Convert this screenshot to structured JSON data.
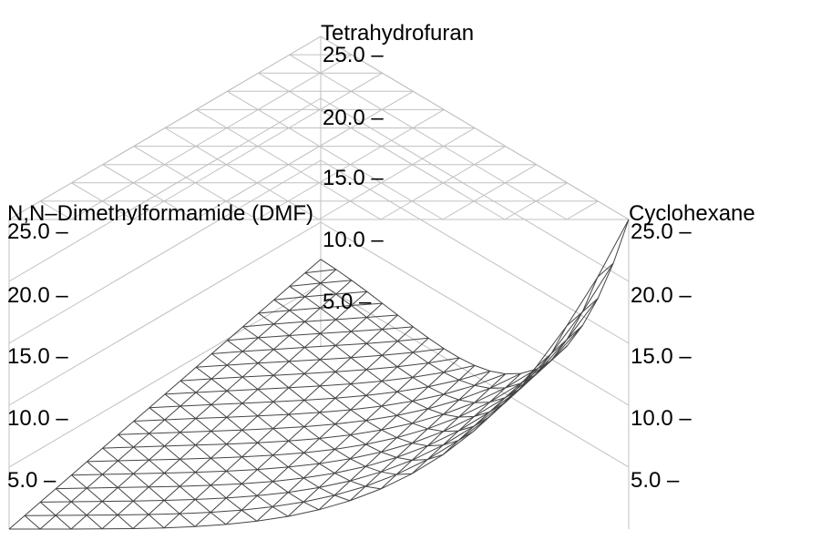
{
  "chart_data": {
    "type": "surface",
    "title": "",
    "axes": {
      "top": {
        "label": "Tetrahydrofuran",
        "ticks": [
          "25.0 –",
          "20.0 –",
          "15.0 –",
          "10.0 –",
          "5.0 –"
        ]
      },
      "left": {
        "label": "N,N–Dimethylformamide (DMF)",
        "ticks": [
          "25.0 –",
          "20.0 –",
          "15.0 –",
          "10.0 –",
          "5.0 –"
        ]
      },
      "right": {
        "label": "Cyclohexane",
        "ticks": [
          "25.0 –",
          "20.0 –",
          "15.0 –",
          "10.0 –",
          "5.0 –"
        ]
      }
    },
    "tick_values": [
      25.0,
      20.0,
      15.0,
      10.0,
      5.0
    ],
    "zlim": [
      0,
      25
    ],
    "corner_values": {
      "tetrahydrofuran": 7.0,
      "dmf": 0.0,
      "cyclohexane": 25.0
    },
    "grid": true,
    "colors": {
      "surface": "#444444",
      "grid": "#c0c0c0",
      "text": "#000000"
    }
  }
}
